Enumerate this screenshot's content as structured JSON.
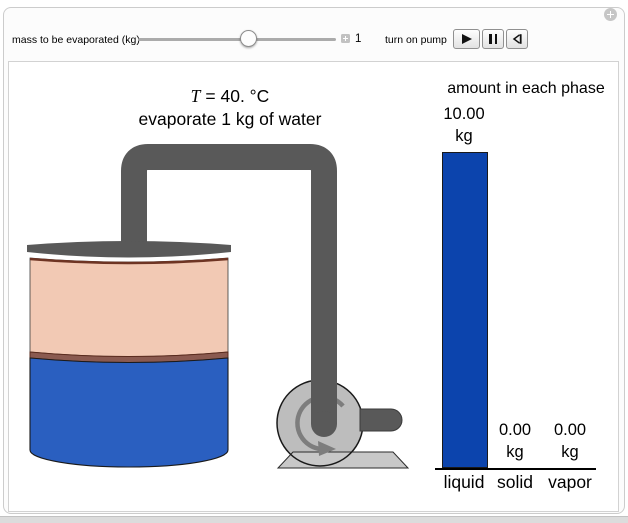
{
  "controls": {
    "slider_label": "mass to be evaporated (kg)",
    "slider_value": "1",
    "pump_label": "turn on pump"
  },
  "diagram": {
    "temp_var": "T",
    "temp_value": "= 40. °C",
    "subtitle": "evaporate 1 kg of water",
    "colors": {
      "tank_liquid": "#2a5fc0",
      "tank_vapor_space": "#f2c9b4",
      "tank_interface": "#8a5a50",
      "pipe": "#595959",
      "pump_body": "#bdbdbd",
      "pump_arrow": "#7d7d7d"
    }
  },
  "chart_data": {
    "type": "bar",
    "title": "amount in each phase",
    "categories": [
      "liquid",
      "solid",
      "vapor"
    ],
    "values": [
      10,
      0,
      0
    ],
    "value_labels": [
      "10.00",
      "0.00",
      "0.00"
    ],
    "unit_label": "kg",
    "xlabel": "",
    "ylabel": "",
    "ylim": [
      0,
      10
    ],
    "grid": "off",
    "legend": "none",
    "bar_color": "#0c44ad"
  }
}
